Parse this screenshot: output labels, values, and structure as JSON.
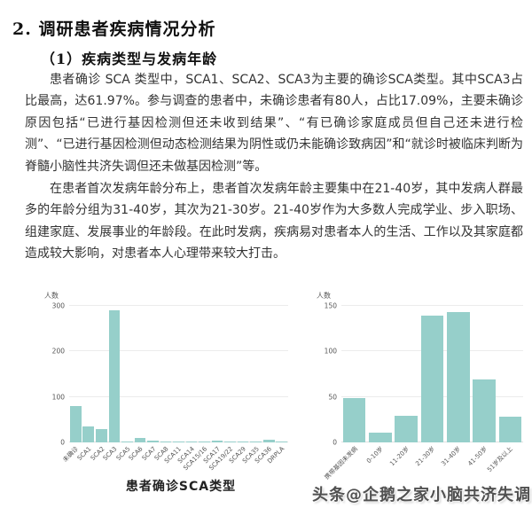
{
  "doc": {
    "title": "2. 调研患者疾病情况分析",
    "subtitle": "（1）疾病类型与发病年龄",
    "paragraphs": [
      "患者确诊 SCA 类型中，SCA1、SCA2、SCA3为主要的确诊SCA类型。其中SCA3占比最高，达61.97%。参与调查的患者中，未确诊患者有80人，占比17.09%，主要未确诊原因包括“已进行基因检测但还未收到结果”、“有已确诊家庭成员但自己还未进行检测”、“已进行基因检测但动态检测结果为阴性或仍未能确诊致病因”和“就诊时被临床判断为脊髓小脑性共济失调但还未做基因检测”等。",
      "在患者首次发病年龄分布上，患者首次发病年龄主要集中在21-40岁，其中发病人群最多的年龄分组为31-40岁，其次为21-30岁。21-40岁作为大多数人完成学业、步入职场、组建家庭、发展事业的年龄段。在此时发病，疾病易对患者本人的生活、工作以及其家庭都造成较大影响，对患者本人心理带来较大打击。"
    ]
  },
  "colors": {
    "bar": "#96cfca",
    "grid": "#ececec",
    "axis_text": "#555555"
  },
  "chart_data": [
    {
      "type": "bar",
      "title": "患者确诊SCA类型",
      "ylabel": "人数",
      "ylim": [
        0,
        300
      ],
      "yticks": [
        0,
        100,
        200,
        300
      ],
      "grid": true,
      "categories": [
        "未确诊",
        "SCA1",
        "SCA2",
        "SCA3",
        "SCA5",
        "SCA6",
        "SCA7",
        "SCA8",
        "SCA11",
        "SCA14",
        "SCA15/16",
        "SCA17",
        "SCA19/22",
        "SCA29",
        "SCA35",
        "SCA36",
        "DRPLA"
      ],
      "values": [
        80,
        36,
        30,
        290,
        1,
        10,
        3,
        1,
        1,
        1,
        2,
        3,
        1,
        1,
        1,
        5,
        1
      ]
    },
    {
      "type": "bar",
      "title": "",
      "ylabel": "人数",
      "ylim": [
        0,
        150
      ],
      "yticks": [
        0,
        50,
        100,
        150
      ],
      "grid": true,
      "categories": [
        "携带基因未发病",
        "0-10岁",
        "11-20岁",
        "21-30岁",
        "31-40岁",
        "41-50岁",
        "51岁及以上"
      ],
      "values": [
        49,
        11,
        29,
        139,
        143,
        69,
        28
      ]
    }
  ],
  "watermark": {
    "text": "头条@企鹅之家小脑共济失调"
  }
}
